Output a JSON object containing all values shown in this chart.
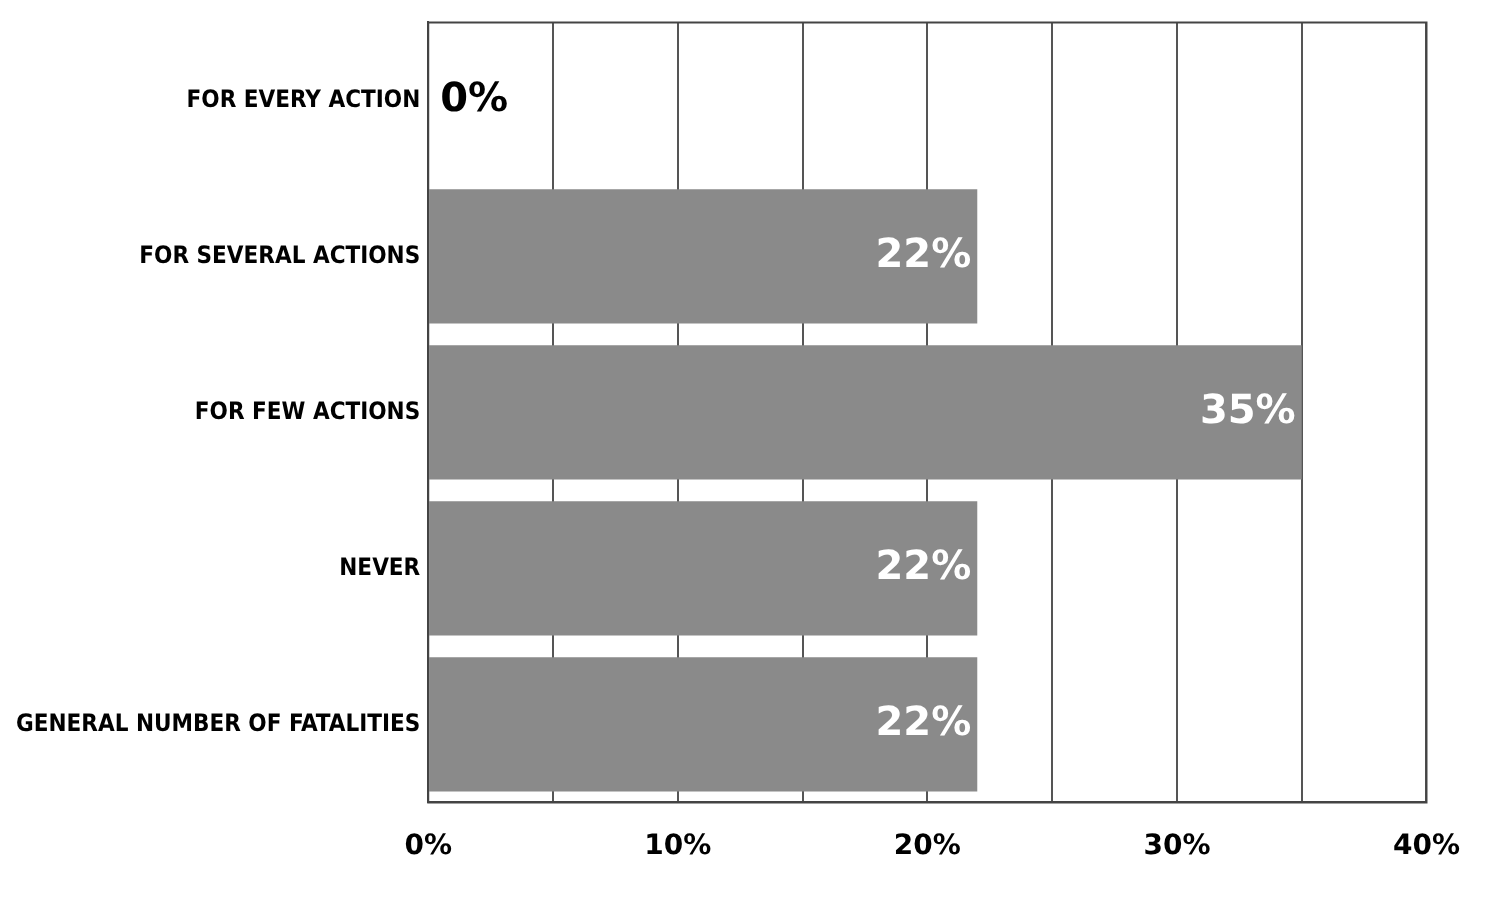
{
  "chart_data": {
    "type": "bar",
    "orientation": "horizontal",
    "categories": [
      "FOR EVERY ACTION",
      "FOR SEVERAL ACTIONS",
      "FOR FEW ACTIONS",
      "NEVER",
      "GENERAL NUMBER OF FATALITIES"
    ],
    "values": [
      0,
      22,
      35,
      22,
      22
    ],
    "value_labels": [
      "0%",
      "22%",
      "35%",
      "22%",
      "22%"
    ],
    "color": "#8a8a8a",
    "xlim": [
      0,
      40
    ],
    "xticks": [
      {
        "value": 0,
        "label": "0%"
      },
      {
        "value": 5,
        "label": null
      },
      {
        "value": 10,
        "label": "10%"
      },
      {
        "value": 15,
        "label": null
      },
      {
        "value": 20,
        "label": "20%"
      },
      {
        "value": 25,
        "label": null
      },
      {
        "value": 30,
        "label": "30%"
      },
      {
        "value": 35,
        "label": null
      },
      {
        "value": 40,
        "label": "40%"
      }
    ],
    "grid": "x",
    "legend": false
  }
}
